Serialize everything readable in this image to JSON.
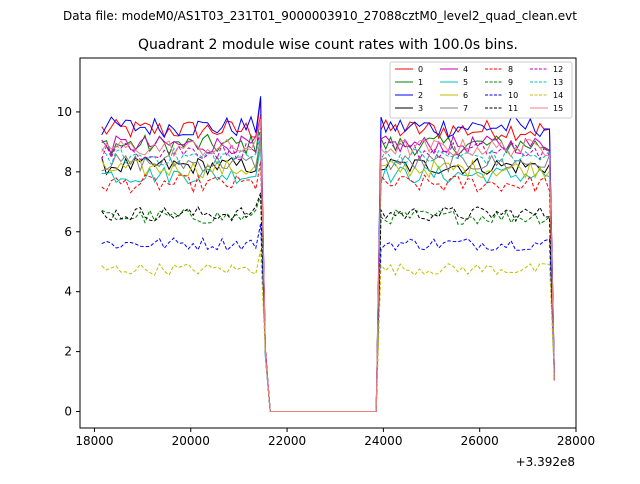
{
  "header": {
    "suptitle": "Data file: modeM0/AS1T03_231T01_9000003910_27088cztM0_level2_quad_clean.evt"
  },
  "chart_data": {
    "type": "line",
    "title": "Quadrant 2 module wise count rates with 100.0s bins.",
    "xlabel": "",
    "ylabel": "",
    "x_offset_label": "+3.392e8",
    "xlim": [
      17700,
      28000
    ],
    "ylim": [
      -0.55,
      11.8
    ],
    "grid": false,
    "legend_position": "top-right",
    "x_ticks": [
      18000,
      20000,
      22000,
      24000,
      26000,
      28000
    ],
    "y_ticks": [
      0,
      2,
      4,
      6,
      8,
      10
    ],
    "segments": {
      "seg1": {
        "start": 18150,
        "end": 21450,
        "step": 100
      },
      "gap_start": 21550,
      "gap_end": 23850,
      "seg2": {
        "start": 23950,
        "end": 27450,
        "step": 100
      },
      "drop_x": 27550
    },
    "series": [
      {
        "name": "0",
        "color": "#ff0000",
        "dash": "solid",
        "level": 9.4,
        "noise": 0.35
      },
      {
        "name": "1",
        "color": "#008000",
        "dash": "solid",
        "level": 8.9,
        "noise": 0.35
      },
      {
        "name": "2",
        "color": "#0000ff",
        "dash": "solid",
        "level": 9.5,
        "noise": 0.35
      },
      {
        "name": "3",
        "color": "#000000",
        "dash": "solid",
        "level": 8.2,
        "noise": 0.3
      },
      {
        "name": "4",
        "color": "#bf00bf",
        "dash": "solid",
        "level": 8.9,
        "noise": 0.3
      },
      {
        "name": "5",
        "color": "#00bfbf",
        "dash": "solid",
        "level": 7.9,
        "noise": 0.3
      },
      {
        "name": "6",
        "color": "#bfbf00",
        "dash": "solid",
        "level": 8.1,
        "noise": 0.3
      },
      {
        "name": "7",
        "color": "#808080",
        "dash": "solid",
        "level": 8.3,
        "noise": 0.3
      },
      {
        "name": "8",
        "color": "#ff0000",
        "dash": "dashed",
        "level": 7.6,
        "noise": 0.3
      },
      {
        "name": "9",
        "color": "#008000",
        "dash": "dashed",
        "level": 6.5,
        "noise": 0.25
      },
      {
        "name": "10",
        "color": "#0000ff",
        "dash": "dashed",
        "level": 5.6,
        "noise": 0.22
      },
      {
        "name": "11",
        "color": "#000000",
        "dash": "dashed",
        "level": 6.6,
        "noise": 0.25
      },
      {
        "name": "12",
        "color": "#bf00bf",
        "dash": "dashed",
        "level": 8.7,
        "noise": 0.3
      },
      {
        "name": "13",
        "color": "#00bfbf",
        "dash": "dashed",
        "level": 8.5,
        "noise": 0.3
      },
      {
        "name": "14",
        "color": "#bfbf00",
        "dash": "dashed",
        "level": 4.75,
        "noise": 0.2
      },
      {
        "name": "15",
        "color": "#f08080",
        "dash": "solid",
        "level": 8.8,
        "noise": 0.3
      }
    ]
  }
}
